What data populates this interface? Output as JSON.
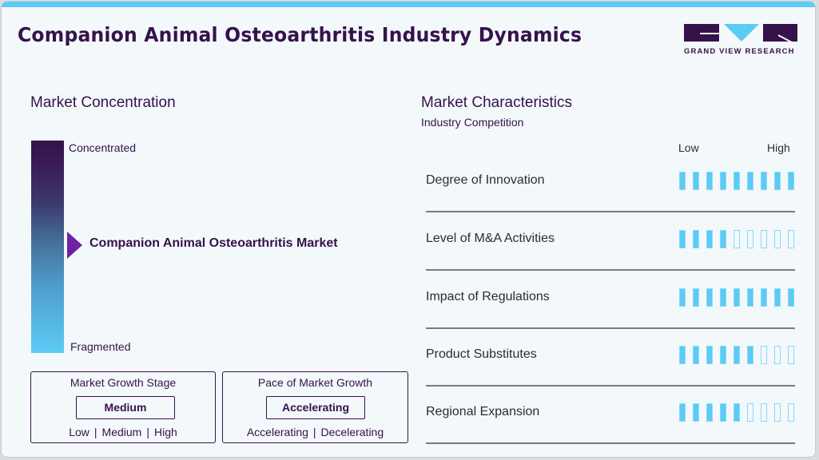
{
  "header": {
    "title": "Companion Animal Osteoarthritis Industry Dynamics",
    "logo_text": "GRAND VIEW RESEARCH"
  },
  "colors": {
    "primary": "#36124a",
    "accent": "#5ccbf5",
    "marker": "#6e22a3",
    "background": "#f3f8fb"
  },
  "concentration": {
    "title": "Market Concentration",
    "top_label": "Concentrated",
    "bottom_label": "Fragmented",
    "market_label": "Companion Animal Osteoarthritis Market",
    "marker_position_pct": 50
  },
  "growth_stage": {
    "title": "Market Growth Stage",
    "value": "Medium",
    "options": [
      "Low",
      "Medium",
      "High"
    ]
  },
  "growth_pace": {
    "title": "Pace of Market Growth",
    "value": "Accelerating",
    "options": [
      "Accelerating",
      "Decelerating"
    ]
  },
  "characteristics": {
    "title": "Market Characteristics",
    "subtitle": "Industry Competition",
    "scale_low": "Low",
    "scale_high": "High",
    "max": 9,
    "rows": [
      {
        "label": "Degree of Innovation",
        "value": 9
      },
      {
        "label": "Level of M&A Activities",
        "value": 4
      },
      {
        "label": "Impact of Regulations",
        "value": 9
      },
      {
        "label": "Product Substitutes",
        "value": 6
      },
      {
        "label": "Regional Expansion",
        "value": 5
      }
    ]
  }
}
